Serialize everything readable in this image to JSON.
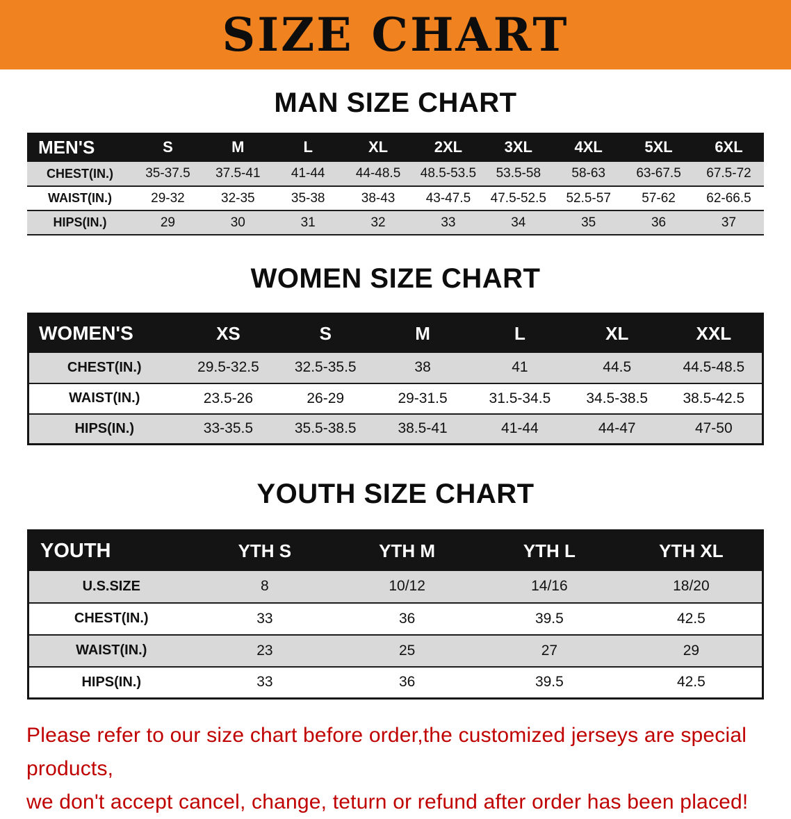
{
  "banner": {
    "title": "SIZE CHART",
    "background_color": "#f0831f",
    "text_color": "#0d0d0d"
  },
  "sections": [
    {
      "heading": "MAN SIZE CHART",
      "table": {
        "header": [
          "MEN'S",
          "S",
          "M",
          "L",
          "XL",
          "2XL",
          "3XL",
          "4XL",
          "5XL",
          "6XL"
        ],
        "rows": [
          [
            "CHEST(IN.)",
            "35-37.5",
            "37.5-41",
            "41-44",
            "44-48.5",
            "48.5-53.5",
            "53.5-58",
            "58-63",
            "63-67.5",
            "67.5-72"
          ],
          [
            "WAIST(IN.)",
            "29-32",
            "32-35",
            "35-38",
            "38-43",
            "43-47.5",
            "47.5-52.5",
            "52.5-57",
            "57-62",
            "62-66.5"
          ],
          [
            "HIPS(IN.)",
            "29",
            "30",
            "31",
            "32",
            "33",
            "34",
            "35",
            "36",
            "37"
          ]
        ]
      }
    },
    {
      "heading": "WOMEN SIZE CHART",
      "table": {
        "header": [
          "WOMEN'S",
          "XS",
          "S",
          "M",
          "L",
          "XL",
          "XXL"
        ],
        "rows": [
          [
            "CHEST(IN.)",
            "29.5-32.5",
            "32.5-35.5",
            "38",
            "41",
            "44.5",
            "44.5-48.5"
          ],
          [
            "WAIST(IN.)",
            "23.5-26",
            "26-29",
            "29-31.5",
            "31.5-34.5",
            "34.5-38.5",
            "38.5-42.5"
          ],
          [
            "HIPS(IN.)",
            "33-35.5",
            "35.5-38.5",
            "38.5-41",
            "41-44",
            "44-47",
            "47-50"
          ]
        ]
      }
    },
    {
      "heading": "YOUTH SIZE CHART",
      "table": {
        "header": [
          "YOUTH",
          "YTH S",
          "YTH M",
          "YTH L",
          "YTH XL"
        ],
        "rows": [
          [
            "U.S.SIZE",
            "8",
            "10/12",
            "14/16",
            "18/20"
          ],
          [
            "CHEST(IN.)",
            "33",
            "36",
            "39.5",
            "42.5"
          ],
          [
            "WAIST(IN.)",
            "23",
            "25",
            "27",
            "29"
          ],
          [
            "HIPS(IN.)",
            "33",
            "36",
            "39.5",
            "42.5"
          ]
        ]
      }
    }
  ],
  "footer": {
    "line1": "Please refer to our size chart before order,the customized jerseys are special products,",
    "line2": "we don't accept cancel, change, teturn or refund after order has been placed!",
    "text_color": "#c00000"
  }
}
